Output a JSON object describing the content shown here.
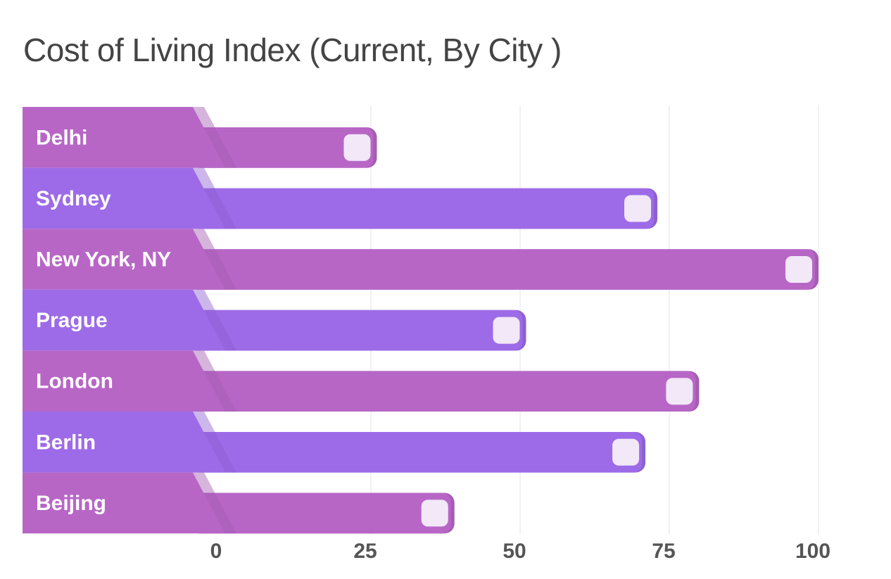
{
  "chart_data": {
    "type": "bar",
    "orientation": "horizontal",
    "title": "Cost of Living Index (Current, By City )",
    "categories": [
      "Delhi",
      "Sydney",
      "New York, NY",
      "Prague",
      "London",
      "Berlin",
      "Beijing"
    ],
    "values": [
      26,
      73,
      100,
      51,
      80,
      71,
      39
    ],
    "xlim": [
      0,
      100
    ],
    "xticks": [
      0,
      25,
      50,
      75,
      100
    ],
    "grid": true,
    "colors": [
      "#b766c6",
      "#9d6be8"
    ]
  }
}
